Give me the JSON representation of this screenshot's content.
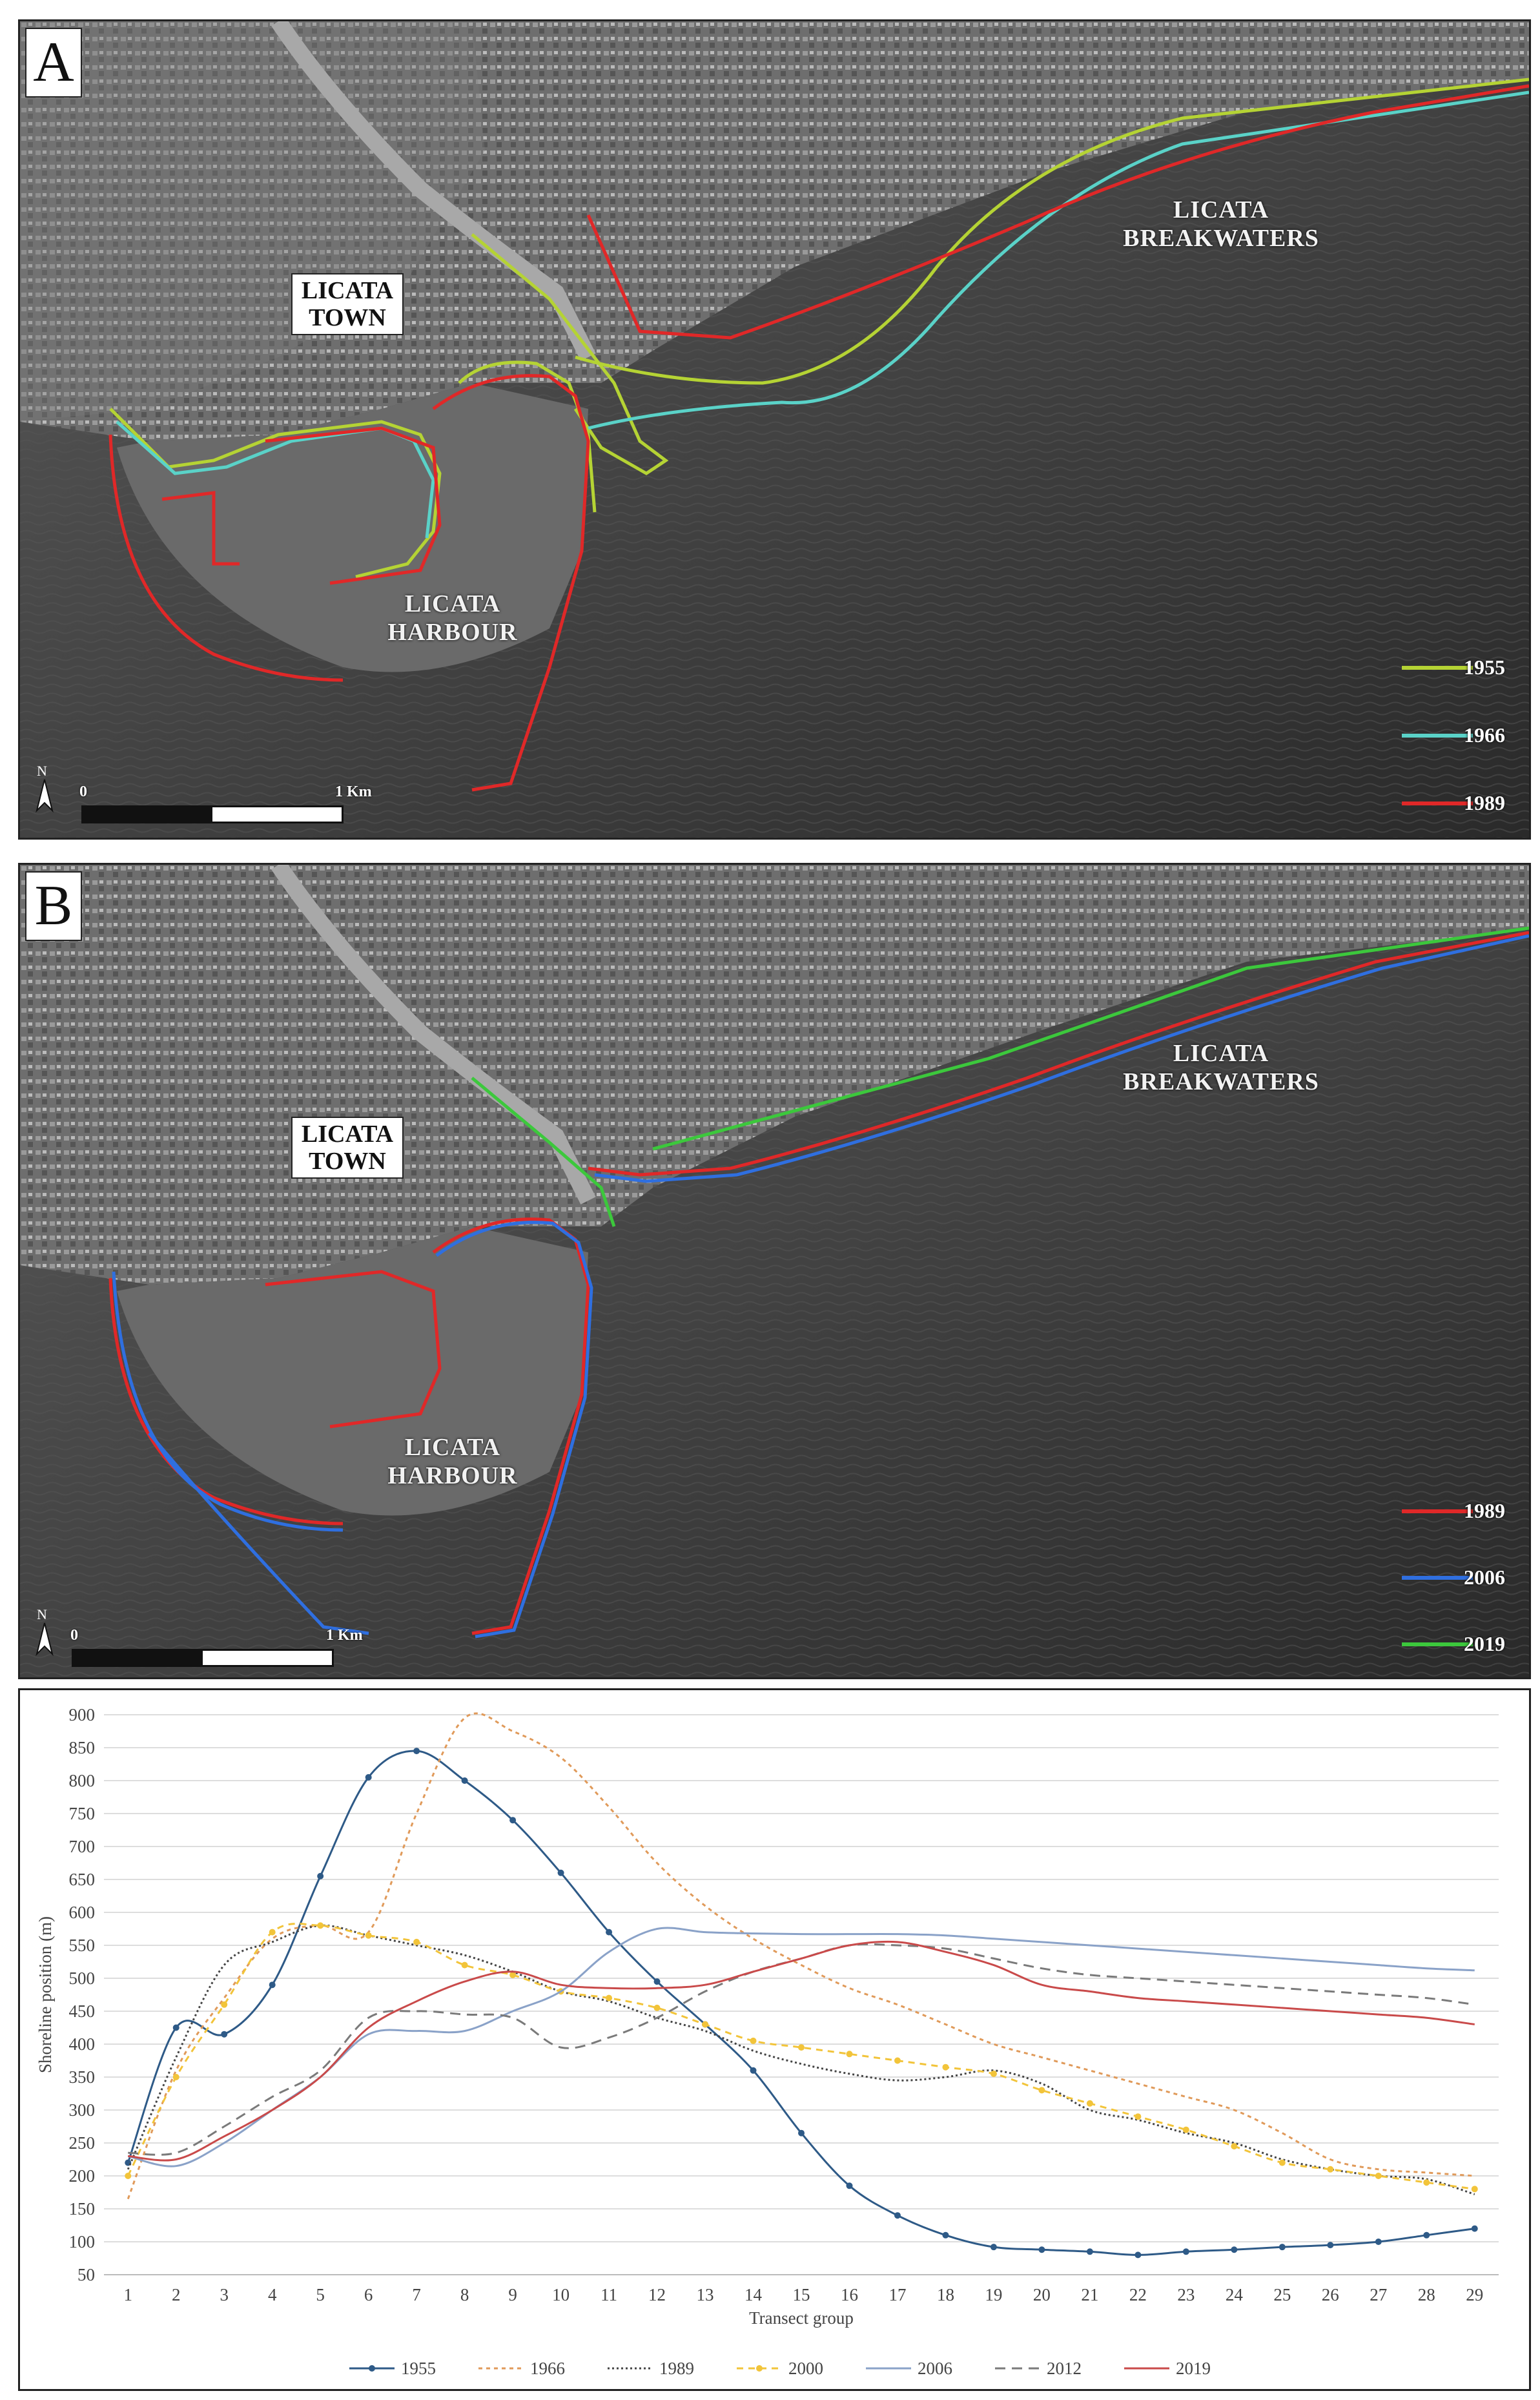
{
  "panel_a": {
    "letter": "A",
    "labels": {
      "town_line1": "LICATA",
      "town_line2": "TOWN",
      "harbour_line1": "LICATA",
      "harbour_line2": "HARBOUR",
      "breakwaters_line1": "LICATA",
      "breakwaters_line2": "BREAKWATERS"
    },
    "legend": [
      {
        "label": "1955",
        "color": "#b5d334"
      },
      {
        "label": "1966",
        "color": "#5ad2c8"
      },
      {
        "label": "1989",
        "color": "#e02828"
      }
    ],
    "north": "N",
    "scale": {
      "start": "0",
      "end": "1 Km"
    }
  },
  "panel_b": {
    "letter": "B",
    "labels": {
      "town_line1": "LICATA",
      "town_line2": "TOWN",
      "harbour_line1": "LICATA",
      "harbour_line2": "HARBOUR",
      "breakwaters_line1": "LICATA",
      "breakwaters_line2": "BREAKWATERS"
    },
    "legend": [
      {
        "label": "1989",
        "color": "#e02828"
      },
      {
        "label": "2006",
        "color": "#2f6fe0"
      },
      {
        "label": "2019",
        "color": "#3cc83c"
      }
    ],
    "north": "N",
    "scale": {
      "start": "0",
      "end": "1 Km"
    }
  },
  "chart_data": {
    "type": "line",
    "xlabel": "Transect group",
    "ylabel": "Shoreline position (m)",
    "ylim": [
      50,
      900
    ],
    "y_ticks": [
      50,
      100,
      150,
      200,
      250,
      300,
      350,
      400,
      450,
      500,
      550,
      600,
      650,
      700,
      750,
      800,
      850,
      900
    ],
    "x": [
      1,
      2,
      3,
      4,
      5,
      6,
      7,
      8,
      9,
      10,
      11,
      12,
      13,
      14,
      15,
      16,
      17,
      18,
      19,
      20,
      21,
      22,
      23,
      24,
      25,
      26,
      27,
      28,
      29
    ],
    "grid": "horizontal",
    "legend_position": "bottom",
    "series": [
      {
        "name": "1955",
        "color": "#2e5a87",
        "style": "solid-markers",
        "values": [
          220,
          425,
          415,
          490,
          655,
          805,
          845,
          800,
          740,
          660,
          570,
          495,
          430,
          360,
          265,
          185,
          140,
          110,
          92,
          88,
          85,
          80,
          85,
          88,
          92,
          95,
          100,
          110,
          120
        ]
      },
      {
        "name": "1966",
        "color": "#e09a5a",
        "style": "dotted",
        "values": [
          165,
          360,
          470,
          560,
          580,
          570,
          750,
          895,
          875,
          835,
          760,
          675,
          610,
          560,
          520,
          485,
          460,
          430,
          400,
          380,
          360,
          340,
          320,
          300,
          265,
          225,
          210,
          205,
          200
        ]
      },
      {
        "name": "1989",
        "color": "#444444",
        "style": "dotted-fine",
        "values": [
          210,
          380,
          520,
          555,
          580,
          565,
          550,
          535,
          510,
          480,
          465,
          440,
          420,
          390,
          370,
          355,
          345,
          350,
          360,
          340,
          300,
          285,
          265,
          250,
          225,
          210,
          200,
          195,
          172
        ]
      },
      {
        "name": "2000",
        "color": "#f2c43a",
        "style": "dashed-markers",
        "values": [
          200,
          350,
          460,
          570,
          580,
          565,
          555,
          520,
          505,
          480,
          470,
          455,
          430,
          405,
          395,
          385,
          375,
          365,
          355,
          330,
          310,
          290,
          270,
          245,
          220,
          210,
          200,
          190,
          180
        ]
      },
      {
        "name": "2006",
        "color": "#8aa2c8",
        "style": "solid",
        "values": [
          230,
          215,
          250,
          300,
          350,
          415,
          420,
          420,
          450,
          480,
          540,
          575,
          570,
          568,
          567,
          567,
          567,
          565,
          560,
          555,
          550,
          545,
          540,
          535,
          530,
          525,
          520,
          515,
          512
        ]
      },
      {
        "name": "2012",
        "color": "#7a7a7a",
        "style": "dashed",
        "values": [
          235,
          235,
          275,
          320,
          360,
          440,
          450,
          445,
          440,
          395,
          410,
          440,
          480,
          510,
          530,
          550,
          550,
          545,
          530,
          515,
          505,
          500,
          495,
          490,
          485,
          480,
          475,
          470,
          460
        ]
      },
      {
        "name": "2019",
        "color": "#c94a4a",
        "style": "solid",
        "values": [
          230,
          225,
          260,
          300,
          350,
          425,
          465,
          495,
          510,
          490,
          485,
          485,
          490,
          510,
          530,
          550,
          555,
          540,
          520,
          490,
          480,
          470,
          465,
          460,
          455,
          450,
          445,
          440,
          430
        ]
      }
    ]
  }
}
